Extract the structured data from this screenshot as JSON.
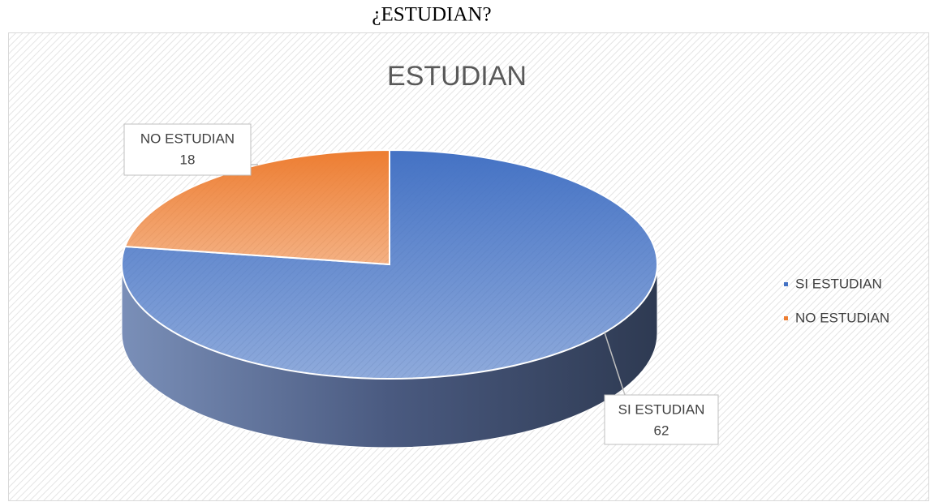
{
  "caption": "¿ESTUDIAN?",
  "chart_data": {
    "type": "pie",
    "title": "ESTUDIAN",
    "three_d": true,
    "categories": [
      "SI ESTUDIAN",
      "NO ESTUDIAN"
    ],
    "values": [
      62,
      18
    ],
    "colors": [
      "#4472c4",
      "#ed7d31"
    ],
    "legend": "right"
  }
}
